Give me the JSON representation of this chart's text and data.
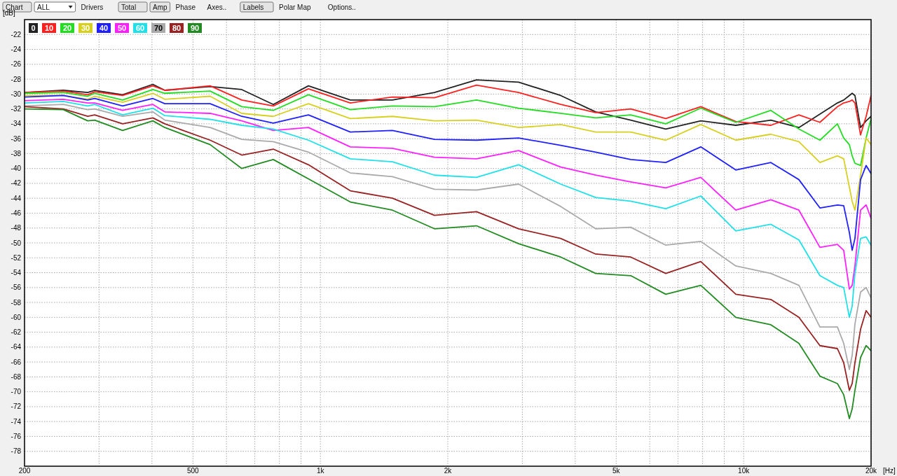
{
  "chart_data": {
    "type": "line",
    "xlabel": "[Hz]",
    "ylabel": "[dB]",
    "log": "x",
    "grid": true,
    "legend": "top left",
    "annotations": [
      "Chart",
      "ALL",
      "Drivers",
      "Total",
      "Amp",
      "Phase",
      "Axes..",
      "Labels",
      "Polar Map",
      "Options.."
    ],
    "xlim": [
      200,
      20000
    ],
    "ylim": [
      -80,
      -20
    ],
    "xticks": [
      200,
      {
        "value": 300,
        "label": null
      },
      {
        "value": 400,
        "label": null
      },
      500,
      {
        "value": 600,
        "label": null
      },
      {
        "value": 700,
        "label": null
      },
      {
        "value": 800,
        "label": null
      },
      {
        "value": 900,
        "label": null
      },
      {
        "value": 1000,
        "label": "1k"
      },
      {
        "value": 2000,
        "label": "2k"
      },
      {
        "value": 3000,
        "label": null
      },
      {
        "value": 4000,
        "label": null
      },
      {
        "value": 5000,
        "label": "5k"
      },
      {
        "value": 6000,
        "label": null
      },
      {
        "value": 7000,
        "label": null
      },
      {
        "value": 8000,
        "label": null
      },
      {
        "value": 9000,
        "label": null
      },
      {
        "value": 10000,
        "label": "10k"
      },
      {
        "value": 20000,
        "label": "20k"
      }
    ],
    "yticks": [
      -78,
      -76,
      -74,
      -72,
      -70,
      -68,
      -66,
      -64,
      -62,
      -60,
      -58,
      -56,
      -54,
      -52,
      -50,
      -48,
      -46,
      -44,
      -42,
      -40,
      -38,
      -36,
      -34,
      -32,
      -30,
      -28,
      -26,
      -24,
      -22
    ],
    "x": [
      200,
      247,
      282,
      293,
      341,
      402,
      429,
      549,
      652,
      774,
      937,
      1177,
      1480,
      1860,
      2338,
      2940,
      3696,
      4472,
      5410,
      6546,
      7920,
      9582,
      11596,
      13506,
      15142,
      16654,
      17234,
      17772,
      18046,
      18320,
      18890,
      19470,
      20000
    ],
    "series": [
      {
        "name": "0",
        "color": "#222222",
        "values": [
          -29.8,
          -29.5,
          -29.8,
          -29.5,
          -30.1,
          -28.7,
          -29.5,
          -29.0,
          -29.4,
          -31.4,
          -28.9,
          -30.8,
          -30.8,
          -29.8,
          -28.1,
          -28.4,
          -30.2,
          -32.4,
          -33.5,
          -34.7,
          -33.6,
          -34.2,
          -33.5,
          -34.5,
          -32.7,
          -31.2,
          -30.8,
          -30.2,
          -29.9,
          -30.2,
          -34.5,
          -33.6,
          -33.0
        ]
      },
      {
        "name": "10",
        "color": "#ff2020",
        "values": [
          -29.8,
          -29.6,
          -30.1,
          -29.7,
          -30.2,
          -28.9,
          -29.5,
          -28.9,
          -30.8,
          -31.6,
          -29.3,
          -31.2,
          -30.4,
          -30.5,
          -28.8,
          -29.8,
          -31.4,
          -32.5,
          -32.0,
          -33.3,
          -31.7,
          -33.7,
          -34.2,
          -32.8,
          -33.8,
          -31.7,
          -31.2,
          -31.0,
          -30.8,
          -31.2,
          -35.5,
          -33.0,
          -30.2
        ]
      },
      {
        "name": "20",
        "color": "#22dd22",
        "values": [
          -29.9,
          -29.8,
          -30.3,
          -29.9,
          -30.8,
          -29.4,
          -29.9,
          -29.6,
          -31.7,
          -32.2,
          -30.1,
          -32.1,
          -31.6,
          -31.7,
          -30.8,
          -31.9,
          -32.6,
          -33.2,
          -32.8,
          -34.0,
          -31.9,
          -33.8,
          -32.2,
          -34.7,
          -36.2,
          -34.0,
          -35.9,
          -36.8,
          -38.3,
          -39.3,
          -39.6,
          -35.9,
          -33.3
        ]
      },
      {
        "name": "30",
        "color": "#d8d020",
        "values": [
          -30.2,
          -30.2,
          -30.7,
          -30.3,
          -31.1,
          -29.9,
          -30.7,
          -30.3,
          -32.6,
          -33.0,
          -31.3,
          -33.3,
          -33.0,
          -33.6,
          -33.5,
          -34.5,
          -34.1,
          -35.1,
          -35.1,
          -36.2,
          -34.1,
          -36.2,
          -35.4,
          -36.4,
          -39.2,
          -38.3,
          -38.7,
          -42.5,
          -44.4,
          -45.6,
          -40.9,
          -35.9,
          -36.8
        ]
      },
      {
        "name": "40",
        "color": "#2020ff",
        "values": [
          -30.4,
          -30.2,
          -30.8,
          -30.6,
          -31.6,
          -30.6,
          -31.3,
          -31.3,
          -33.0,
          -33.9,
          -32.8,
          -35.1,
          -34.9,
          -36.1,
          -36.2,
          -35.9,
          -36.9,
          -37.8,
          -38.8,
          -39.2,
          -37.1,
          -40.2,
          -39.2,
          -41.5,
          -45.3,
          -44.9,
          -45.0,
          -48.6,
          -51.0,
          -49.4,
          -41.5,
          -39.6,
          -40.7
        ]
      },
      {
        "name": "50",
        "color": "#ff20ff",
        "values": [
          -30.9,
          -30.7,
          -31.2,
          -31.2,
          -32.2,
          -31.4,
          -32.4,
          -32.6,
          -33.6,
          -34.9,
          -34.5,
          -37.1,
          -37.3,
          -38.5,
          -38.7,
          -37.6,
          -39.8,
          -40.9,
          -41.8,
          -42.6,
          -41.2,
          -45.6,
          -44.2,
          -45.6,
          -50.6,
          -50.2,
          -51.0,
          -56.2,
          -55.7,
          -53.1,
          -45.6,
          -44.9,
          -46.7
        ]
      },
      {
        "name": "60",
        "color": "#20e0e8",
        "values": [
          -31.2,
          -31.0,
          -31.6,
          -31.4,
          -32.8,
          -31.9,
          -32.9,
          -33.4,
          -34.2,
          -34.7,
          -36.2,
          -38.7,
          -39.1,
          -40.9,
          -41.2,
          -39.5,
          -42.1,
          -43.9,
          -44.4,
          -45.4,
          -43.7,
          -48.4,
          -47.5,
          -49.6,
          -54.4,
          -55.7,
          -56.0,
          -60.0,
          -58.5,
          -54.1,
          -49.4,
          -49.2,
          -50.3
        ]
      },
      {
        "name": "70",
        "color": "#aaaaaa",
        "values": [
          -31.6,
          -31.4,
          -32.1,
          -32.0,
          -33.0,
          -32.4,
          -33.5,
          -34.5,
          -36.1,
          -36.4,
          -37.8,
          -40.6,
          -41.1,
          -42.8,
          -42.9,
          -42.1,
          -45.1,
          -48.1,
          -47.9,
          -50.3,
          -49.8,
          -53.1,
          -54.1,
          -55.7,
          -61.3,
          -61.3,
          -63.5,
          -67.0,
          -65.1,
          -60.9,
          -56.6,
          -56.0,
          -57.4
        ]
      },
      {
        "name": "80",
        "color": "#992222",
        "values": [
          -31.7,
          -32.0,
          -33.0,
          -32.8,
          -34.0,
          -33.2,
          -34.0,
          -36.2,
          -38.2,
          -37.4,
          -39.5,
          -43.0,
          -44.0,
          -46.3,
          -45.8,
          -48.1,
          -49.4,
          -51.5,
          -51.9,
          -54.1,
          -52.5,
          -56.9,
          -57.6,
          -60.0,
          -63.8,
          -64.2,
          -66.1,
          -69.8,
          -68.9,
          -66.1,
          -61.6,
          -59.1,
          -60.0
        ]
      },
      {
        "name": "90",
        "color": "#228b22",
        "values": [
          -32.0,
          -32.1,
          -33.6,
          -33.5,
          -34.9,
          -33.6,
          -34.5,
          -36.8,
          -40.0,
          -38.8,
          -41.4,
          -44.5,
          -45.6,
          -48.1,
          -47.7,
          -50.1,
          -51.9,
          -54.1,
          -54.4,
          -56.9,
          -55.7,
          -60.0,
          -61.0,
          -63.5,
          -67.9,
          -68.9,
          -70.4,
          -73.6,
          -72.3,
          -69.8,
          -65.4,
          -63.8,
          -64.5
        ]
      }
    ]
  }
}
